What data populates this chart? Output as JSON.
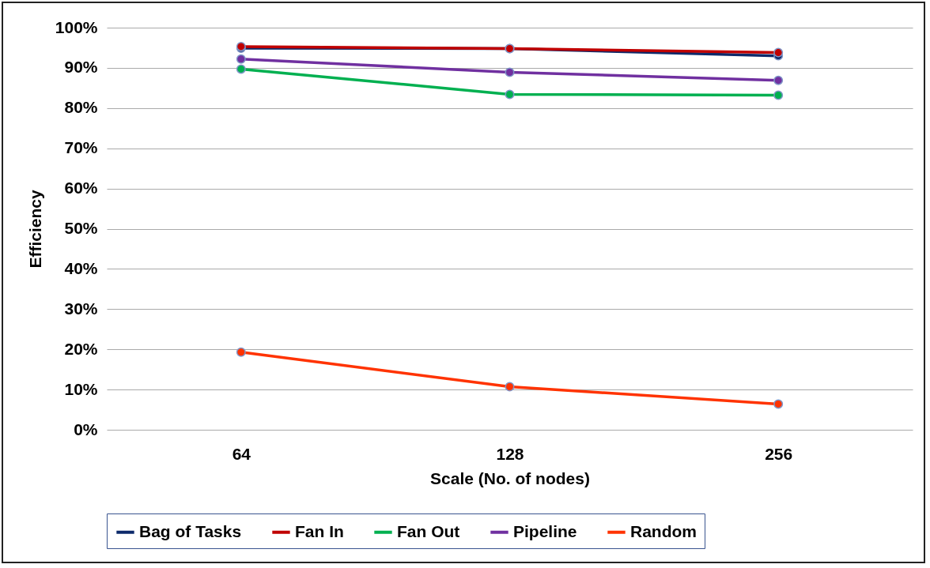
{
  "chart_data": {
    "type": "line",
    "xlabel": "Scale (No. of nodes)",
    "ylabel": "Efficiency",
    "categories": [
      "64",
      "128",
      "256"
    ],
    "series": [
      {
        "name": "Bag of Tasks",
        "color": "#0d2a6b",
        "values": [
          94.9,
          94.8,
          93.0
        ]
      },
      {
        "name": "Fan In",
        "color": "#c00000",
        "values": [
          95.3,
          94.8,
          93.8
        ]
      },
      {
        "name": "Fan Out",
        "color": "#00b050",
        "values": [
          89.7,
          83.4,
          83.2
        ]
      },
      {
        "name": "Pipeline",
        "color": "#7030a0",
        "values": [
          92.2,
          88.9,
          86.9
        ]
      },
      {
        "name": "Random",
        "color": "#ff3300",
        "values": [
          19.3,
          10.7,
          6.4
        ]
      }
    ],
    "ylim": [
      0,
      100
    ],
    "yticks": [
      {
        "value": 0,
        "label": "0%"
      },
      {
        "value": 10,
        "label": "10%"
      },
      {
        "value": 20,
        "label": "20%"
      },
      {
        "value": 30,
        "label": "30%"
      },
      {
        "value": 40,
        "label": "40%"
      },
      {
        "value": 50,
        "label": "50%"
      },
      {
        "value": 60,
        "label": "60%"
      },
      {
        "value": 70,
        "label": "70%"
      },
      {
        "value": 80,
        "label": "80%"
      },
      {
        "value": 90,
        "label": "90%"
      },
      {
        "value": 100,
        "label": "100%"
      }
    ],
    "grid": "y",
    "legend": "bottom",
    "marker": "circle",
    "line_style": "solid"
  }
}
